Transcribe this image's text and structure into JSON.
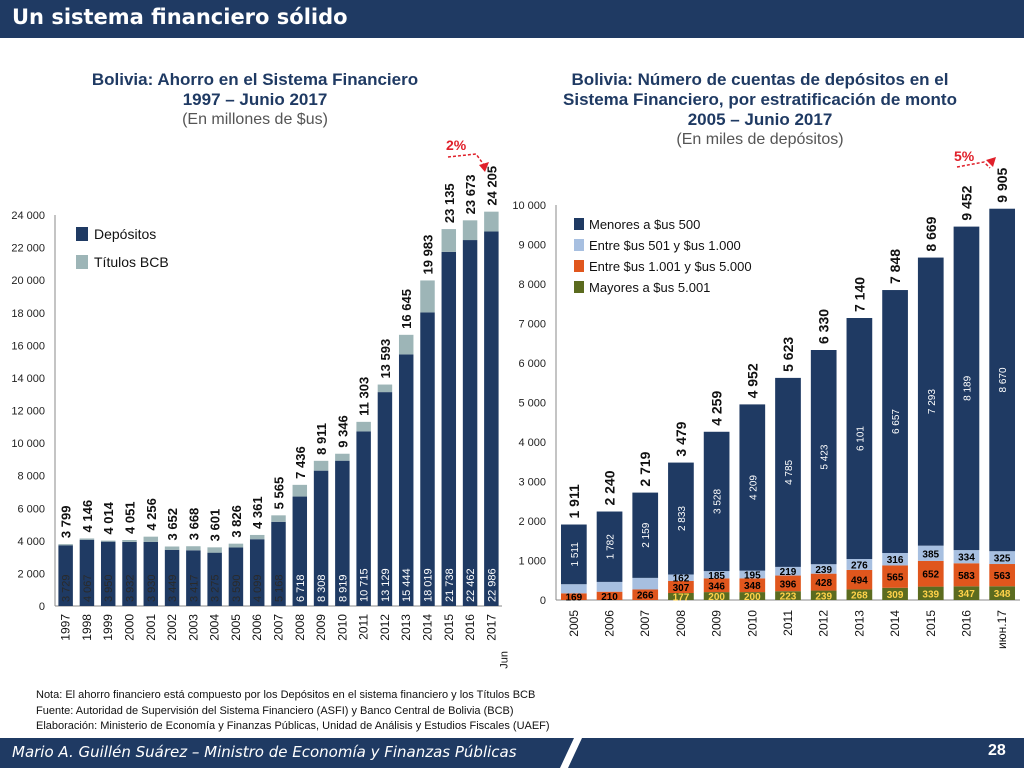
{
  "slide": {
    "title": "Un sistema financiero sólido",
    "footer": "Mario A. Guillén Suárez – Ministro de Economía y Finanzas Públicas",
    "page": "28",
    "notes": [
      "Nota: El ahorro financiero está compuesto por los Depósitos en el sistema financiero y los Títulos BCB",
      "Fuente: Autoridad de Supervisión del Sistema Financiero (ASFI) y Banco Central de Bolivia (BCB)",
      "Elaboración: Ministerio de Economía y Finanzas Públicas, Unidad de Análisis y Estudios Fiscales (UAEF)"
    ],
    "colors": {
      "navy": "#1f3a63",
      "bar_main": "#1f3a63",
      "bar_light": "#9db5b7",
      "entre1": "#a7bfe0",
      "entre2": "#e0561d",
      "mayores": "#5b6b1f",
      "growth": "#e0202a"
    }
  },
  "chart_data": [
    {
      "type": "bar",
      "stacked": true,
      "title": "Bolivia: Ahorro en el Sistema Financiero",
      "title2": "1997 – Junio 2017",
      "subtitle": "(En millones de $us)",
      "categories": [
        "1997",
        "1998",
        "1999",
        "2000",
        "2001",
        "2002",
        "2003",
        "2004",
        "2005",
        "2006",
        "2007",
        "2008",
        "2009",
        "2010",
        "2011",
        "2012",
        "2013",
        "2014",
        "2015",
        "2016",
        "2017"
      ],
      "category_note": "Jun",
      "series": [
        {
          "name": "Depósitos",
          "values": [
            3729,
            4067,
            3950,
            3932,
            3930,
            3449,
            3417,
            3275,
            3590,
            4099,
            5168,
            6718,
            8308,
            8919,
            10715,
            13129,
            15444,
            18019,
            21738,
            22462,
            22986
          ]
        },
        {
          "name": "Títulos BCB",
          "values": [
            70,
            79,
            64,
            119,
            326,
            203,
            251,
            326,
            236,
            262,
            397,
            718,
            603,
            427,
            588,
            464,
            1201,
            1964,
            1397,
            1211,
            1219
          ]
        }
      ],
      "totals_labels": [
        "3 799",
        "4 146",
        "4 014",
        "4 051",
        "4 256",
        "3 652",
        "3 668",
        "3 601",
        "3 826",
        "4 361",
        "5 565",
        "7 436",
        "8 911",
        "9 346",
        "11 303",
        "13 593",
        "16 645",
        "19 983",
        "23 135",
        "23 673",
        "24 205"
      ],
      "deposit_labels": [
        "3 729",
        "4 067",
        "3 950",
        "3 932",
        "3 930",
        "3 449",
        "3 417",
        "3 275",
        "3 590",
        "4 099",
        "5 168",
        "6 718",
        "8 308",
        "8 919",
        "10 715",
        "13 129",
        "15 444",
        "18 019",
        "21 738",
        "22 462",
        "22 986"
      ],
      "yticks": [
        0,
        2000,
        4000,
        6000,
        8000,
        10000,
        12000,
        14000,
        16000,
        18000,
        20000,
        22000,
        24000
      ],
      "ytick_labels": [
        "0",
        "2 000",
        "4 000",
        "6 000",
        "8 000",
        "10 000",
        "12 000",
        "14 000",
        "16 000",
        "18 000",
        "20 000",
        "22 000",
        "24 000"
      ],
      "ylim": [
        0,
        24000
      ],
      "annotation": "2%",
      "legend": "top-left"
    },
    {
      "type": "bar",
      "stacked": true,
      "title": "Bolivia: Número de cuentas de depósitos en el",
      "title2": "Sistema Financiero, por estratificación de monto",
      "title3": "2005 – Junio 2017",
      "subtitle": "(En miles de depósitos)",
      "categories": [
        "2005",
        "2006",
        "2007",
        "2008",
        "2009",
        "2010",
        "2011",
        "2012",
        "2013",
        "2014",
        "2015",
        "2016",
        "июн.17"
      ],
      "series": [
        {
          "name": "Mayores a $us 5.001",
          "values": [
            0,
            0,
            0,
            177,
            200,
            200,
            223,
            239,
            268,
            309,
            339,
            347,
            348
          ],
          "labels": [
            "",
            "",
            "",
            "177",
            "200",
            "200",
            "223",
            "239",
            "268",
            "309",
            "339",
            "347",
            "348"
          ]
        },
        {
          "name": "Entre $us 1.001 y $us 5.000",
          "values": [
            169,
            210,
            266,
            307,
            346,
            348,
            396,
            428,
            494,
            565,
            652,
            583,
            563
          ],
          "labels": [
            "169",
            "210",
            "266",
            "307",
            "346",
            "348",
            "396",
            "428",
            "494",
            "565",
            "652",
            "583",
            "563"
          ]
        },
        {
          "name": "Entre $us 501 y $us 1.000",
          "values": [
            231,
            248,
            294,
            162,
            185,
            195,
            219,
            239,
            276,
            316,
            385,
            334,
            325
          ],
          "labels": [
            "",
            "",
            "",
            "162",
            "185",
            "195",
            "219",
            "239",
            "276",
            "316",
            "385",
            "334",
            "325"
          ]
        },
        {
          "name": "Menores a $us 500",
          "values": [
            1511,
            1782,
            2159,
            2833,
            3528,
            4209,
            4785,
            5423,
            6101,
            6657,
            7293,
            8189,
            8670
          ],
          "labels": [
            "1 511",
            "1 782",
            "2 159",
            "2 833",
            "3 528",
            "4 209",
            "4 785",
            "5 423",
            "6 101",
            "6 657",
            "7 293",
            "8 189",
            "8 670"
          ]
        }
      ],
      "totals_labels": [
        "1 911",
        "2 240",
        "2 719",
        "3 479",
        "4 259",
        "4 952",
        "5 623",
        "6 330",
        "7 140",
        "7 848",
        "8 669",
        "9 452",
        "9 905"
      ],
      "yticks": [
        0,
        1000,
        2000,
        3000,
        4000,
        5000,
        6000,
        7000,
        8000,
        9000,
        10000
      ],
      "ytick_labels": [
        "0",
        "1 000",
        "2 000",
        "3 000",
        "4 000",
        "5 000",
        "6 000",
        "7 000",
        "8 000",
        "9 000",
        "10 000"
      ],
      "ylim": [
        0,
        10000
      ],
      "annotation": "5%",
      "legend": "top-left"
    }
  ]
}
